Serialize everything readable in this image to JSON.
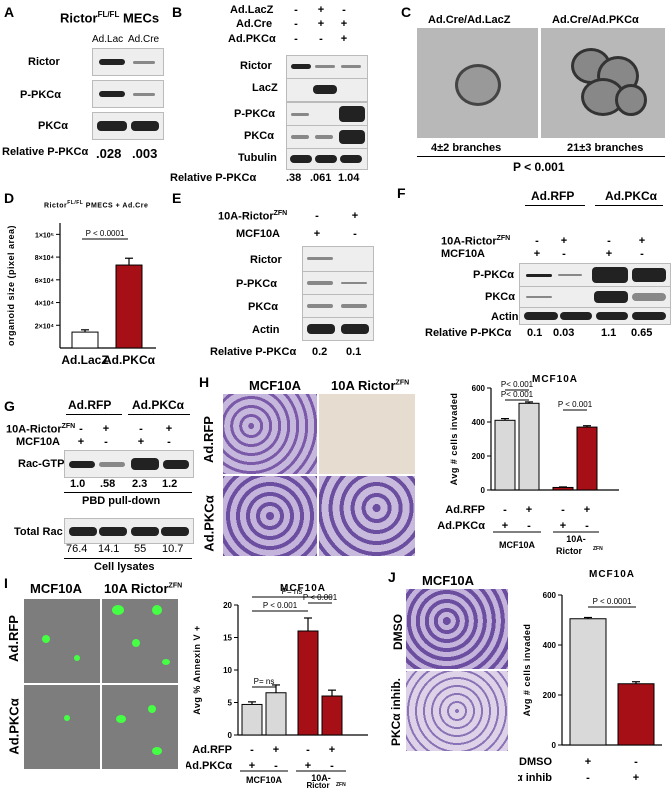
{
  "panels": {
    "A": {
      "letter": "A",
      "title": "Rictor",
      "title_sup": "FL/FL",
      "title_suffix": " MECs",
      "lanes": [
        "Ad.Lac",
        "Ad.Cre"
      ],
      "rows": [
        "Rictor",
        "P-PKCα",
        "PKCα"
      ],
      "relative_label": "Relative P-PKCα",
      "relative_values": [
        ".028",
        ".003"
      ]
    },
    "B": {
      "letter": "B",
      "conditions": [
        {
          "name": "Ad.LacZ",
          "signs": [
            "-",
            "+",
            "-"
          ]
        },
        {
          "name": "Ad.Cre",
          "signs": [
            "-",
            "+",
            "+"
          ]
        },
        {
          "name": "Ad.PKCα",
          "signs": [
            "-",
            "-",
            "+"
          ]
        }
      ],
      "rows": [
        "Rictor",
        "LacZ",
        "P-PKCα",
        "PKCα",
        "Tubulin"
      ],
      "relative_label": "Relative P-PKCα",
      "relative_values": [
        ".38",
        ".061",
        "1.04"
      ]
    },
    "C": {
      "letter": "C",
      "left_title": "Ad.Cre/Ad.LacZ",
      "right_title": "Ad.Cre/Ad.PKCα",
      "left_caption": "4±2 branches",
      "right_caption": "21±3 branches",
      "pvalue": "P < 0.001"
    },
    "D": {
      "letter": "D",
      "pvalue": "P < 0.0001"
    },
    "E": {
      "letter": "E",
      "conditions": [
        {
          "name": "10A-Rictor",
          "sup": "ZFN",
          "signs": [
            "-",
            "+"
          ]
        },
        {
          "name": "MCF10A",
          "sup": "",
          "signs": [
            "+",
            "-"
          ]
        }
      ],
      "rows": [
        "Rictor",
        "P-PKCα",
        "PKCα",
        "Actin"
      ],
      "relative_label": "Relative P-PKCα",
      "relative_values": [
        "0.2",
        "0.1"
      ]
    },
    "F": {
      "letter": "F",
      "groups": [
        "Ad.RFP",
        "Ad.PKCα"
      ],
      "conditions": [
        {
          "name": "10A-Rictor",
          "sup": "ZFN",
          "signs": [
            "-",
            "+",
            "-",
            "+"
          ]
        },
        {
          "name": "MCF10A",
          "sup": "",
          "signs": [
            "+",
            "-",
            "+",
            "-"
          ]
        }
      ],
      "rows": [
        "P-PKCα",
        "PKCα",
        "Actin"
      ],
      "relative_label": "Relative P-PKCα",
      "relative_values": [
        "0.1",
        "0.03",
        "1.1",
        "0.65"
      ]
    },
    "G": {
      "letter": "G",
      "groups": [
        "Ad.RFP",
        "Ad.PKCα"
      ],
      "conditions": [
        {
          "name": "10A-Rictor",
          "sup": "ZFN",
          "signs": [
            "-",
            "+",
            "-",
            "+"
          ]
        },
        {
          "name": "MCF10A",
          "sup": "",
          "signs": [
            "+",
            "-",
            "+",
            "-"
          ]
        }
      ],
      "row_top": "Rac-GTP",
      "top_values": [
        "1.0",
        ".58",
        "2.3",
        "1.2"
      ],
      "top_caption": "PBD pull-down",
      "row_bottom": "Total Rac",
      "bottom_values": [
        "76.4",
        "14.1",
        "55",
        "10.7"
      ],
      "bottom_caption": "Cell lysates"
    },
    "H": {
      "letter": "H",
      "col_titles": [
        "MCF10A",
        "10A Rictor"
      ],
      "col_sup": "ZFN",
      "row_titles": [
        "Ad.RFP",
        "Ad.PKCα"
      ],
      "pvalues": [
        "P< 0.001",
        "P< 0.001",
        "P < 0.001"
      ],
      "sign_rows": [
        {
          "name": "Ad.RFP",
          "signs": [
            "-",
            "+",
            "-",
            "+"
          ]
        },
        {
          "name": "Ad.PKCα",
          "signs": [
            "+",
            "-",
            "+",
            "-"
          ]
        }
      ],
      "group_labels": [
        "MCF10A",
        "10A-"
      ],
      "group_label2": "Rictor",
      "group_sup": "ZFN"
    },
    "I": {
      "letter": "I",
      "col_titles": [
        "MCF10A",
        "10A Rictor"
      ],
      "col_sup": "ZFN",
      "row_titles": [
        "Ad.RFP",
        "Ad.PKCα"
      ],
      "pvalues": [
        "P= ns",
        "P < 0.001",
        "P < 0.001",
        "P= ns"
      ],
      "sign_rows": [
        {
          "name": "Ad.RFP",
          "signs": [
            "-",
            "+",
            "-",
            "+"
          ]
        },
        {
          "name": "Ad.PKCα",
          "signs": [
            "+",
            "-",
            "+",
            "-"
          ]
        }
      ],
      "group_labels": [
        "MCF10A",
        "10A-"
      ],
      "group_label2": "Rictor",
      "group_sup": "ZFN"
    },
    "J": {
      "letter": "J",
      "col_title": "MCF10A",
      "row_titles": [
        "DMSO",
        "PKCα inhib."
      ],
      "pvalue": "P < 0.0001",
      "sign_rows": [
        {
          "name": "DMSO",
          "signs": [
            "+",
            "-"
          ]
        },
        {
          "name": "PKCα inhib",
          "signs": [
            "-",
            "+"
          ]
        }
      ]
    }
  },
  "chart_data": [
    {
      "id": "D",
      "type": "bar",
      "title": "Rictor",
      "title_sup": "FL/FL",
      "title_rest": " PMECS + Ad.Cre",
      "ylabel": "organoid size (pixel area)",
      "categories": [
        "Ad.LacZ",
        "Ad.PKCα"
      ],
      "values": [
        14000,
        73000
      ],
      "errors": [
        2000,
        6000
      ],
      "ylim": [
        0,
        110000
      ],
      "ytick_values": [
        20000,
        40000,
        60000,
        80000,
        100000
      ],
      "ytick_labels": [
        "2×10⁴",
        "4×10⁴",
        "6×10⁴",
        "8×10⁴",
        "1×10⁵"
      ],
      "colors": [
        "#ffffff",
        "#a50f15"
      ]
    },
    {
      "id": "H",
      "type": "bar",
      "title": "MCF10A",
      "ylabel": "Avg # cells invaded",
      "values": [
        410,
        510,
        15,
        370
      ],
      "errors": [
        10,
        8,
        3,
        8
      ],
      "ylim": [
        0,
        600
      ],
      "ytick_values": [
        0,
        200,
        400,
        600
      ],
      "ytick_labels": [
        "0",
        "200",
        "400",
        "600"
      ],
      "colors": [
        "#d9d9d9",
        "#d9d9d9",
        "#a50f15",
        "#a50f15"
      ]
    },
    {
      "id": "I",
      "type": "bar",
      "title": "MCF10A",
      "ylabel": "Avg % Annexin V +",
      "values": [
        4.7,
        6.5,
        16,
        6
      ],
      "errors": [
        0.4,
        1.2,
        2,
        0.9
      ],
      "ylim": [
        0,
        20
      ],
      "ytick_values": [
        0,
        5,
        10,
        15,
        20
      ],
      "ytick_labels": [
        "0",
        "5",
        "10",
        "15",
        "20"
      ],
      "colors": [
        "#d9d9d9",
        "#d9d9d9",
        "#a50f15",
        "#a50f15"
      ]
    },
    {
      "id": "J",
      "type": "bar",
      "title": "MCF10A",
      "ylabel": "Avg # cells invaded",
      "values": [
        505,
        245
      ],
      "errors": [
        5,
        8
      ],
      "ylim": [
        0,
        600
      ],
      "ytick_values": [
        0,
        200,
        400,
        600
      ],
      "ytick_labels": [
        "0",
        "200",
        "400",
        "600"
      ],
      "colors": [
        "#d9d9d9",
        "#a50f15"
      ]
    }
  ]
}
